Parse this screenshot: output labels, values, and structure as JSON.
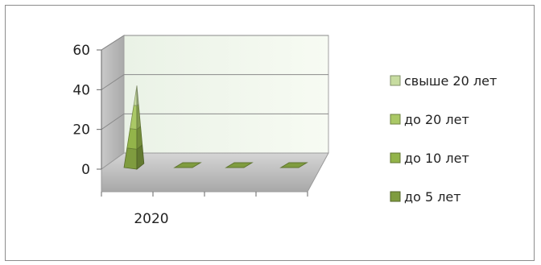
{
  "chart_data": {
    "type": "bar",
    "style": "3d-pyramid-stacked",
    "title": "",
    "xlabel": "",
    "ylabel": "",
    "ylim": [
      0,
      60
    ],
    "yticks": [
      0,
      20,
      40,
      60
    ],
    "grid": true,
    "legend_position": "right",
    "categories": [
      "2020",
      "",
      "",
      ""
    ],
    "series": [
      {
        "name": "до 5 лет",
        "color": "#7f9c3f",
        "values": [
          10,
          0,
          0,
          0
        ]
      },
      {
        "name": "до 10 лет",
        "color": "#93b44a",
        "values": [
          10,
          0,
          0,
          0
        ]
      },
      {
        "name": "до 20 лет",
        "color": "#aac866",
        "values": [
          12,
          0,
          0,
          0
        ]
      },
      {
        "name": "свыше 20 лет",
        "color": "#c7dca0",
        "values": [
          10,
          0,
          0,
          0
        ]
      }
    ],
    "legend_order": [
      "свыше 20 лет",
      "до 20 лет",
      "до 10 лет",
      "до 5 лет"
    ]
  }
}
